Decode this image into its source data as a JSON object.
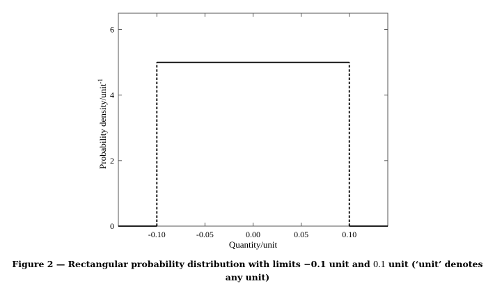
{
  "chart_data": {
    "type": "line",
    "title": "",
    "xlabel": "Quantity/unit",
    "ylabel": "Probability density/unit",
    "ylabel_superscript": "-1",
    "xlim": [
      -0.14,
      0.14
    ],
    "ylim": [
      0,
      6.5
    ],
    "xticks": [
      -0.1,
      -0.05,
      0.0,
      0.05,
      0.1
    ],
    "xtick_labels": [
      "-0.10",
      "-0.05",
      "0.00",
      "0.05",
      "0.10"
    ],
    "yticks": [
      0,
      2,
      4,
      6
    ],
    "ytick_labels": [
      "0",
      "2",
      "4",
      "6"
    ],
    "grid": false,
    "series": [
      {
        "style": "solid",
        "x": [
          -0.14,
          -0.1,
          -0.1,
          0.1,
          0.1,
          0.14
        ],
        "y": [
          0,
          0,
          5,
          5,
          0,
          0
        ],
        "segments": [
          {
            "x": [
              -0.14,
              -0.1
            ],
            "y": [
              0,
              0
            ]
          },
          {
            "x": [
              -0.1,
              0.1
            ],
            "y": [
              5,
              5
            ]
          },
          {
            "x": [
              0.1,
              0.14
            ],
            "y": [
              0,
              0
            ]
          }
        ]
      },
      {
        "style": "dashed",
        "segments": [
          {
            "x": [
              -0.1,
              -0.1
            ],
            "y": [
              0,
              5
            ]
          },
          {
            "x": [
              0.1,
              0.1
            ],
            "y": [
              0,
              5
            ]
          }
        ]
      }
    ]
  },
  "caption": {
    "part1": "Figure 2 — Rectangular probability distribution with limits −0.1 unit and ",
    "num": "0.1",
    "part2": " unit (‘unit’ denotes any unit)"
  }
}
